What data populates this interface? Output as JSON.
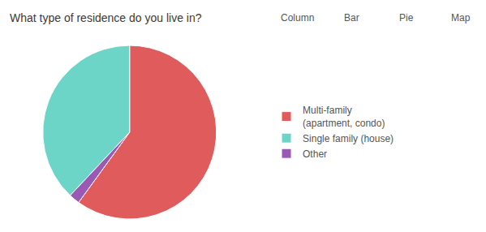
{
  "chart_data": {
    "type": "pie",
    "title": "What type of residence do you live in?",
    "categories": [
      "Multi-family\n(apartment, condo)",
      "Single family (house)",
      "Other"
    ],
    "values": [
      60,
      38,
      2
    ],
    "colors": [
      "#e05c5c",
      "#6dd5c8",
      "#9b59b6"
    ],
    "legend": "right",
    "data_labels": false,
    "annotations": [
      "Column",
      "Bar",
      "Pie",
      "Map"
    ]
  }
}
